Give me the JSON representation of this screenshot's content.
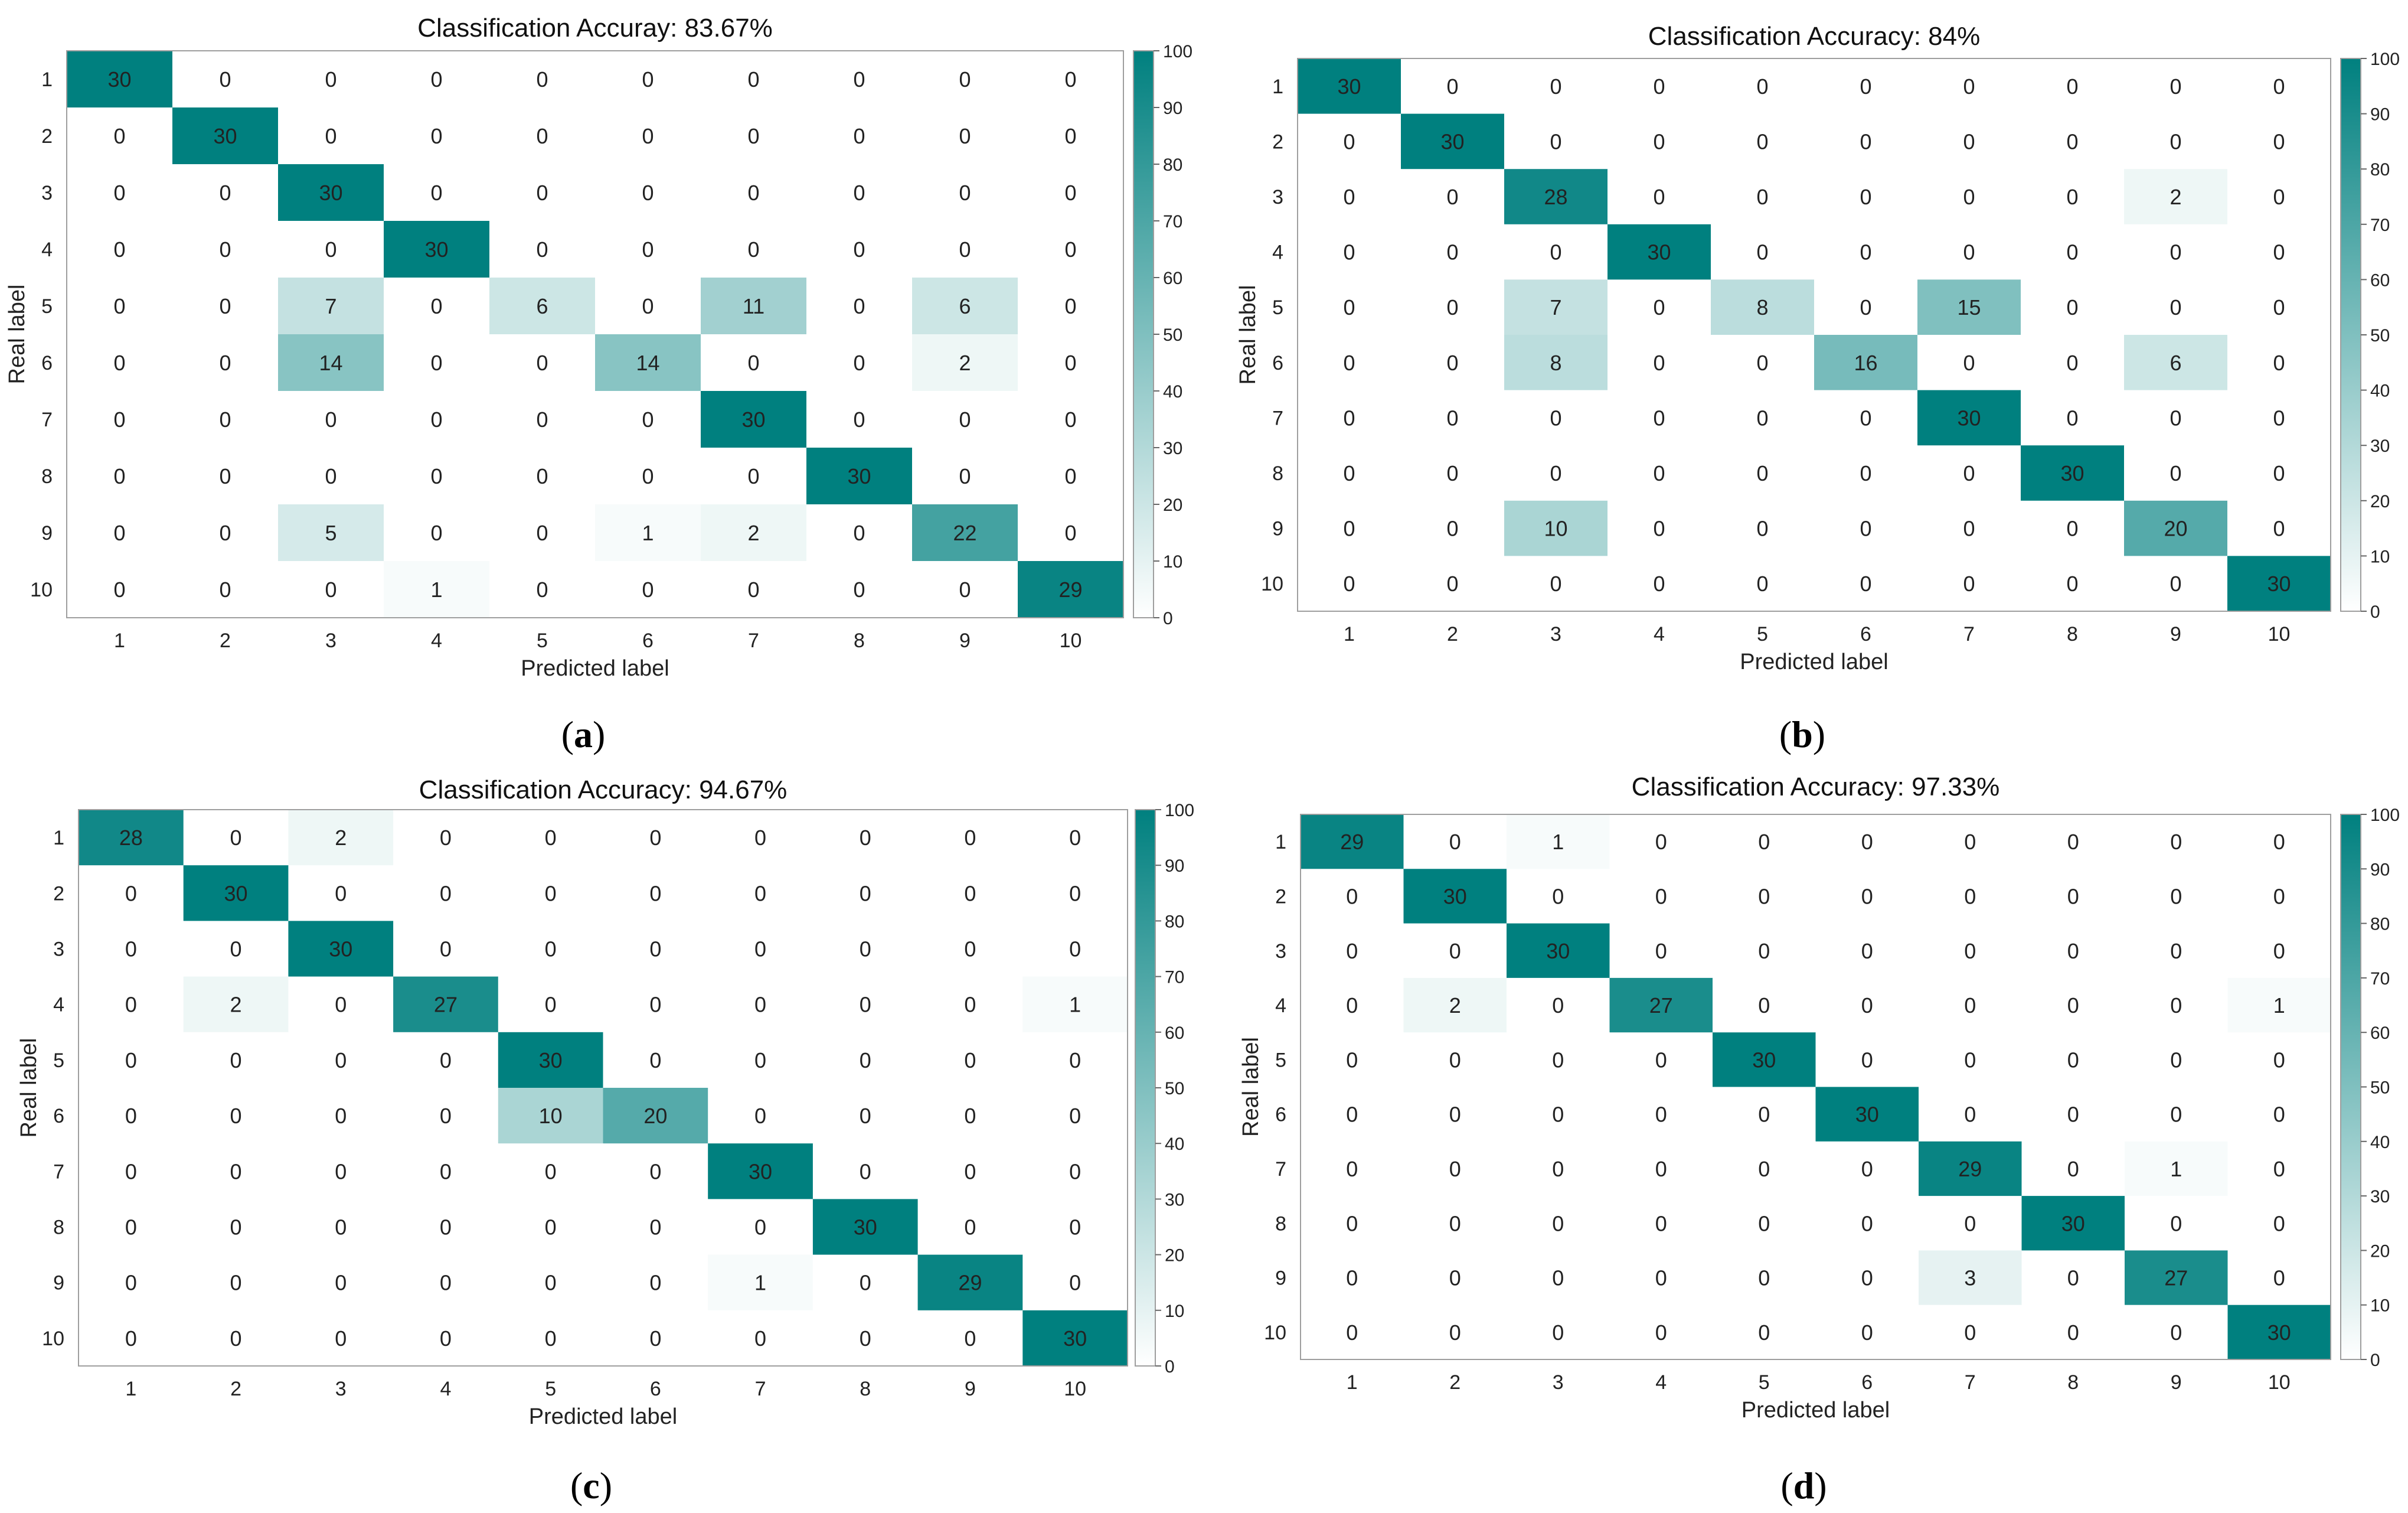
{
  "colorscale": {
    "low": "#ffffff",
    "high": "#00807f"
  },
  "chart_data": [
    {
      "type": "heatmap",
      "panel_label": "a",
      "title": "Classification Accuray: 83.67%",
      "xlabel": "Predicted label",
      "ylabel": "Real label",
      "x_categories": [
        "1",
        "2",
        "3",
        "4",
        "5",
        "6",
        "7",
        "8",
        "9",
        "10"
      ],
      "y_categories": [
        "1",
        "2",
        "3",
        "4",
        "5",
        "6",
        "7",
        "8",
        "9",
        "10"
      ],
      "colorbar_ticks": [
        0,
        10,
        20,
        30,
        40,
        50,
        60,
        70,
        80,
        90,
        100
      ],
      "colorbar_range": [
        0,
        100
      ],
      "values": [
        [
          30,
          0,
          0,
          0,
          0,
          0,
          0,
          0,
          0,
          0
        ],
        [
          0,
          30,
          0,
          0,
          0,
          0,
          0,
          0,
          0,
          0
        ],
        [
          0,
          0,
          30,
          0,
          0,
          0,
          0,
          0,
          0,
          0
        ],
        [
          0,
          0,
          0,
          30,
          0,
          0,
          0,
          0,
          0,
          0
        ],
        [
          0,
          0,
          7,
          0,
          6,
          0,
          11,
          0,
          6,
          0
        ],
        [
          0,
          0,
          14,
          0,
          0,
          14,
          0,
          0,
          2,
          0
        ],
        [
          0,
          0,
          0,
          0,
          0,
          0,
          30,
          0,
          0,
          0
        ],
        [
          0,
          0,
          0,
          0,
          0,
          0,
          0,
          30,
          0,
          0
        ],
        [
          0,
          0,
          5,
          0,
          0,
          1,
          2,
          0,
          22,
          0
        ],
        [
          0,
          0,
          0,
          1,
          0,
          0,
          0,
          0,
          0,
          29
        ]
      ]
    },
    {
      "type": "heatmap",
      "panel_label": "b",
      "title": "Classification Accuracy: 84%",
      "xlabel": "Predicted label",
      "ylabel": "Real label",
      "x_categories": [
        "1",
        "2",
        "3",
        "4",
        "5",
        "6",
        "7",
        "8",
        "9",
        "10"
      ],
      "y_categories": [
        "1",
        "2",
        "3",
        "4",
        "5",
        "6",
        "7",
        "8",
        "9",
        "10"
      ],
      "colorbar_ticks": [
        0,
        10,
        20,
        30,
        40,
        50,
        60,
        70,
        80,
        90,
        100
      ],
      "colorbar_range": [
        0,
        100
      ],
      "values": [
        [
          30,
          0,
          0,
          0,
          0,
          0,
          0,
          0,
          0,
          0
        ],
        [
          0,
          30,
          0,
          0,
          0,
          0,
          0,
          0,
          0,
          0
        ],
        [
          0,
          0,
          28,
          0,
          0,
          0,
          0,
          0,
          2,
          0
        ],
        [
          0,
          0,
          0,
          30,
          0,
          0,
          0,
          0,
          0,
          0
        ],
        [
          0,
          0,
          7,
          0,
          8,
          0,
          15,
          0,
          0,
          0
        ],
        [
          0,
          0,
          8,
          0,
          0,
          16,
          0,
          0,
          6,
          0
        ],
        [
          0,
          0,
          0,
          0,
          0,
          0,
          30,
          0,
          0,
          0
        ],
        [
          0,
          0,
          0,
          0,
          0,
          0,
          0,
          30,
          0,
          0
        ],
        [
          0,
          0,
          10,
          0,
          0,
          0,
          0,
          0,
          20,
          0
        ],
        [
          0,
          0,
          0,
          0,
          0,
          0,
          0,
          0,
          0,
          30
        ]
      ]
    },
    {
      "type": "heatmap",
      "panel_label": "c",
      "title": "Classification Accuracy: 94.67%",
      "xlabel": "Predicted label",
      "ylabel": "Real label",
      "x_categories": [
        "1",
        "2",
        "3",
        "4",
        "5",
        "6",
        "7",
        "8",
        "9",
        "10"
      ],
      "y_categories": [
        "1",
        "2",
        "3",
        "4",
        "5",
        "6",
        "7",
        "8",
        "9",
        "10"
      ],
      "colorbar_ticks": [
        0,
        10,
        20,
        30,
        40,
        50,
        60,
        70,
        80,
        90,
        100
      ],
      "colorbar_range": [
        0,
        100
      ],
      "values": [
        [
          28,
          0,
          2,
          0,
          0,
          0,
          0,
          0,
          0,
          0
        ],
        [
          0,
          30,
          0,
          0,
          0,
          0,
          0,
          0,
          0,
          0
        ],
        [
          0,
          0,
          30,
          0,
          0,
          0,
          0,
          0,
          0,
          0
        ],
        [
          0,
          2,
          0,
          27,
          0,
          0,
          0,
          0,
          0,
          1
        ],
        [
          0,
          0,
          0,
          0,
          30,
          0,
          0,
          0,
          0,
          0
        ],
        [
          0,
          0,
          0,
          0,
          10,
          20,
          0,
          0,
          0,
          0
        ],
        [
          0,
          0,
          0,
          0,
          0,
          0,
          30,
          0,
          0,
          0
        ],
        [
          0,
          0,
          0,
          0,
          0,
          0,
          0,
          30,
          0,
          0
        ],
        [
          0,
          0,
          0,
          0,
          0,
          0,
          1,
          0,
          29,
          0
        ],
        [
          0,
          0,
          0,
          0,
          0,
          0,
          0,
          0,
          0,
          30
        ]
      ]
    },
    {
      "type": "heatmap",
      "panel_label": "d",
      "title": "Classification Accuracy: 97.33%",
      "xlabel": "Predicted label",
      "ylabel": "Real label",
      "x_categories": [
        "1",
        "2",
        "3",
        "4",
        "5",
        "6",
        "7",
        "8",
        "9",
        "10"
      ],
      "y_categories": [
        "1",
        "2",
        "3",
        "4",
        "5",
        "6",
        "7",
        "8",
        "9",
        "10"
      ],
      "colorbar_ticks": [
        0,
        10,
        20,
        30,
        40,
        50,
        60,
        70,
        80,
        90,
        100
      ],
      "colorbar_range": [
        0,
        100
      ],
      "values": [
        [
          29,
          0,
          1,
          0,
          0,
          0,
          0,
          0,
          0,
          0
        ],
        [
          0,
          30,
          0,
          0,
          0,
          0,
          0,
          0,
          0,
          0
        ],
        [
          0,
          0,
          30,
          0,
          0,
          0,
          0,
          0,
          0,
          0
        ],
        [
          0,
          2,
          0,
          27,
          0,
          0,
          0,
          0,
          0,
          1
        ],
        [
          0,
          0,
          0,
          0,
          30,
          0,
          0,
          0,
          0,
          0
        ],
        [
          0,
          0,
          0,
          0,
          0,
          30,
          0,
          0,
          0,
          0
        ],
        [
          0,
          0,
          0,
          0,
          0,
          0,
          29,
          0,
          1,
          0
        ],
        [
          0,
          0,
          0,
          0,
          0,
          0,
          0,
          30,
          0,
          0
        ],
        [
          0,
          0,
          0,
          0,
          0,
          0,
          3,
          0,
          27,
          0
        ],
        [
          0,
          0,
          0,
          0,
          0,
          0,
          0,
          0,
          0,
          30
        ]
      ]
    }
  ]
}
